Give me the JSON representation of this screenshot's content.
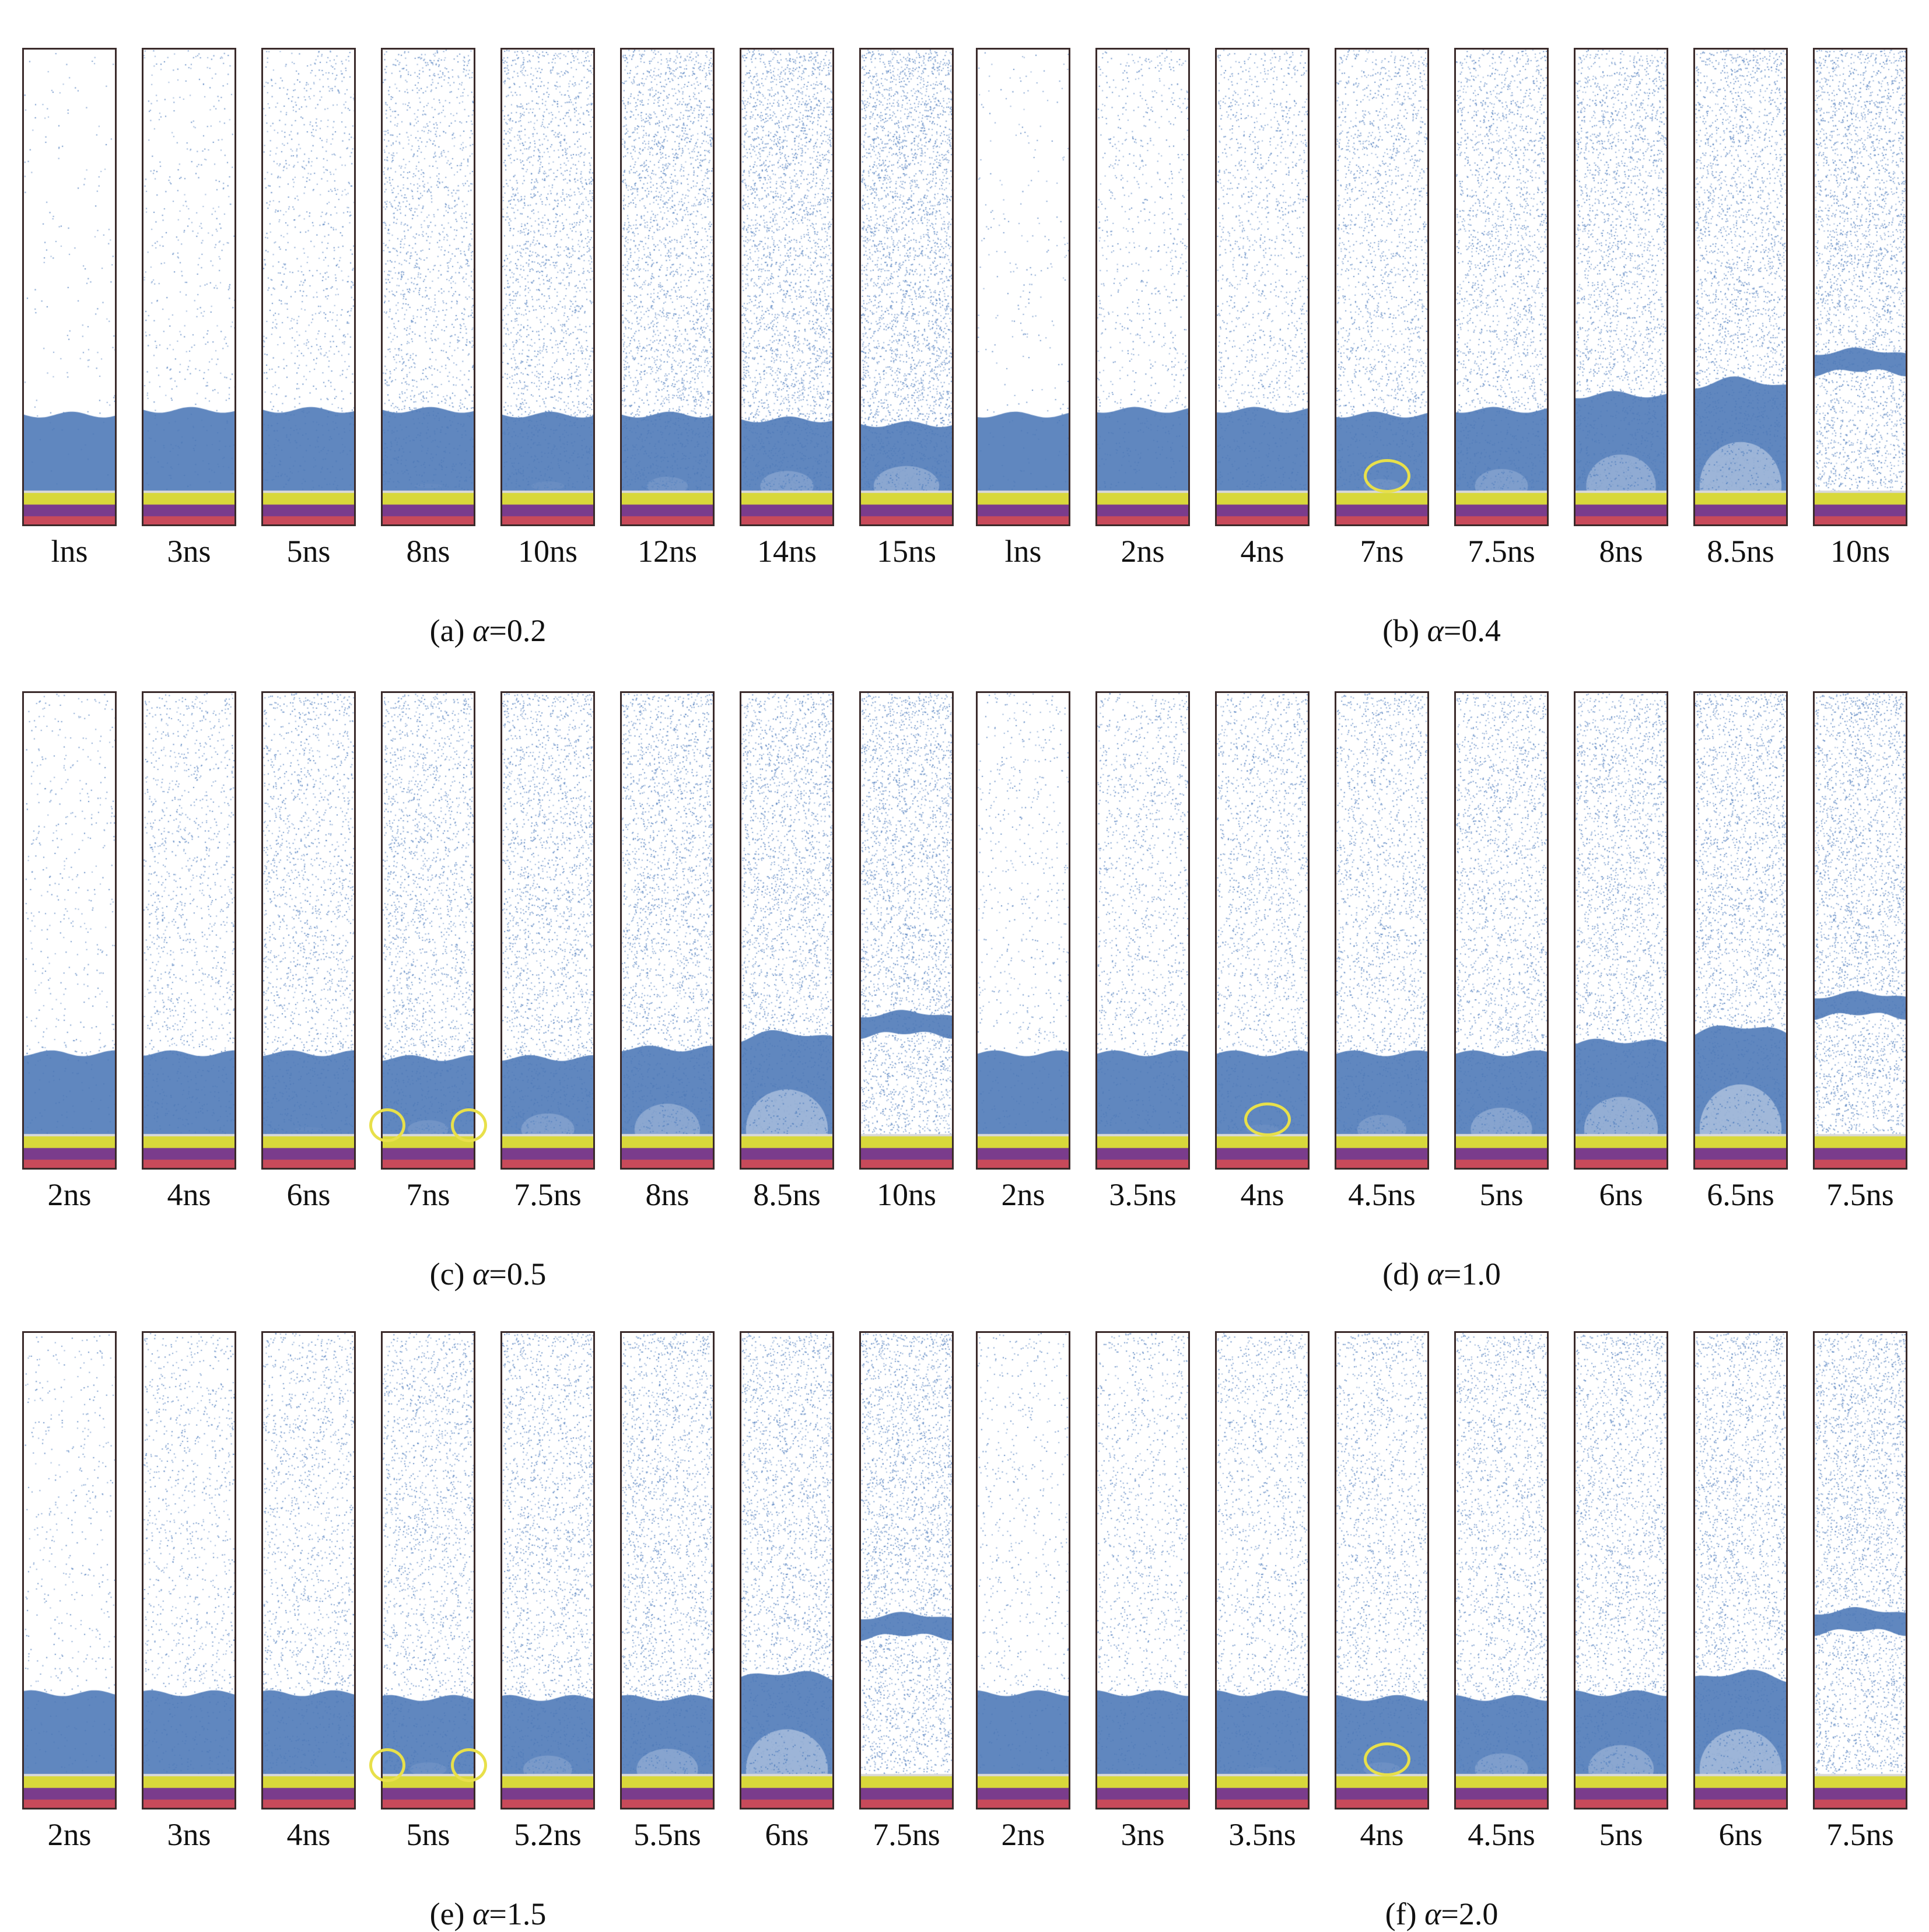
{
  "colors": {
    "particle": "#5b86c2",
    "bubble": "#4f7ab8",
    "yellow_layer": "#d8d83a",
    "purple_layer": "#7a3c8c",
    "red_layer": "#c84a5a",
    "marker": "#e8e04a"
  },
  "groups": [
    {
      "caption_prefix": "(a) ",
      "symbol": "α",
      "caption_value": "=0.2",
      "frames": [
        {
          "label": "lns",
          "density": 0.02,
          "bubble_front": 0.16,
          "detached": null,
          "hole": 0
        },
        {
          "label": "3ns",
          "density": 0.06,
          "bubble_front": 0.17,
          "detached": null,
          "hole": 0
        },
        {
          "label": "5ns",
          "density": 0.12,
          "bubble_front": 0.17,
          "detached": null,
          "hole": 0
        },
        {
          "label": "8ns",
          "density": 0.2,
          "bubble_front": 0.17,
          "detached": null,
          "hole": 0.05
        },
        {
          "label": "10ns",
          "density": 0.26,
          "bubble_front": 0.16,
          "detached": null,
          "hole": 0.1
        },
        {
          "label": "12ns",
          "density": 0.33,
          "bubble_front": 0.16,
          "detached": null,
          "hole": 0.2
        },
        {
          "label": "14ns",
          "density": 0.38,
          "bubble_front": 0.15,
          "detached": null,
          "hole": 0.35
        },
        {
          "label": "15ns",
          "density": 0.42,
          "bubble_front": 0.14,
          "detached": null,
          "hole": 0.5
        }
      ]
    },
    {
      "caption_prefix": "(b) ",
      "symbol": "α",
      "caption_value": "=0.4",
      "frames": [
        {
          "label": "lns",
          "density": 0.03,
          "bubble_front": 0.16,
          "detached": null,
          "hole": 0
        },
        {
          "label": "2ns",
          "density": 0.1,
          "bubble_front": 0.17,
          "detached": null,
          "hole": 0
        },
        {
          "label": "4ns",
          "density": 0.18,
          "bubble_front": 0.17,
          "detached": null,
          "hole": 0
        },
        {
          "label": "7ns",
          "density": 0.24,
          "bubble_front": 0.16,
          "detached": null,
          "hole": 0.15
        },
        {
          "label": "7.5ns",
          "density": 0.27,
          "bubble_front": 0.17,
          "detached": null,
          "hole": 0.35
        },
        {
          "label": "8ns",
          "density": 0.3,
          "bubble_front": 0.2,
          "detached": null,
          "hole": 0.55
        },
        {
          "label": "8.5ns",
          "density": 0.32,
          "bubble_front": 0.22,
          "detached": null,
          "hole": 0.7
        },
        {
          "label": "10ns",
          "density": 0.36,
          "bubble_front": 0.0,
          "detached": 0.32,
          "hole": 1
        }
      ],
      "markers": [
        3
      ]
    },
    {
      "caption_prefix": "(c) ",
      "symbol": "α",
      "caption_value": "=0.5",
      "frames": [
        {
          "label": "2ns",
          "density": 0.06,
          "bubble_front": 0.17,
          "detached": null,
          "hole": 0
        },
        {
          "label": "4ns",
          "density": 0.16,
          "bubble_front": 0.17,
          "detached": null,
          "hole": 0
        },
        {
          "label": "6ns",
          "density": 0.22,
          "bubble_front": 0.17,
          "detached": null,
          "hole": 0.05
        },
        {
          "label": "7ns",
          "density": 0.26,
          "bubble_front": 0.16,
          "detached": null,
          "hole": 0.2
        },
        {
          "label": "7.5ns",
          "density": 0.28,
          "bubble_front": 0.16,
          "detached": null,
          "hole": 0.35
        },
        {
          "label": "8ns",
          "density": 0.3,
          "bubble_front": 0.18,
          "detached": null,
          "hole": 0.5
        },
        {
          "label": "8.5ns",
          "density": 0.32,
          "bubble_front": 0.2,
          "detached": null,
          "hole": 0.7
        },
        {
          "label": "10ns",
          "density": 0.36,
          "bubble_front": 0.0,
          "detached": 0.28,
          "hole": 1
        }
      ],
      "markers": [
        3
      ]
    },
    {
      "caption_prefix": "(d) ",
      "symbol": "α",
      "caption_value": "=1.0",
      "frames": [
        {
          "label": "2ns",
          "density": 0.08,
          "bubble_front": 0.17,
          "detached": null,
          "hole": 0
        },
        {
          "label": "3.5ns",
          "density": 0.18,
          "bubble_front": 0.17,
          "detached": null,
          "hole": 0
        },
        {
          "label": "4ns",
          "density": 0.22,
          "bubble_front": 0.17,
          "detached": null,
          "hole": 0.1
        },
        {
          "label": "4.5ns",
          "density": 0.25,
          "bubble_front": 0.17,
          "detached": null,
          "hole": 0.3
        },
        {
          "label": "5ns",
          "density": 0.27,
          "bubble_front": 0.17,
          "detached": null,
          "hole": 0.45
        },
        {
          "label": "6ns",
          "density": 0.3,
          "bubble_front": 0.19,
          "detached": null,
          "hole": 0.6
        },
        {
          "label": "6.5ns",
          "density": 0.32,
          "bubble_front": 0.21,
          "detached": null,
          "hole": 0.75
        },
        {
          "label": "7.5ns",
          "density": 0.36,
          "bubble_front": 0.0,
          "detached": 0.32,
          "hole": 1
        }
      ],
      "markers": [
        2
      ]
    },
    {
      "caption_prefix": "(e) ",
      "symbol": "α",
      "caption_value": "=1.5",
      "frames": [
        {
          "label": "2ns",
          "density": 0.06,
          "bubble_front": 0.17,
          "detached": null,
          "hole": 0
        },
        {
          "label": "3ns",
          "density": 0.14,
          "bubble_front": 0.17,
          "detached": null,
          "hole": 0
        },
        {
          "label": "4ns",
          "density": 0.2,
          "bubble_front": 0.17,
          "detached": null,
          "hole": 0
        },
        {
          "label": "5ns",
          "density": 0.24,
          "bubble_front": 0.16,
          "detached": null,
          "hole": 0.15
        },
        {
          "label": "5.2ns",
          "density": 0.26,
          "bubble_front": 0.16,
          "detached": null,
          "hole": 0.3
        },
        {
          "label": "5.5ns",
          "density": 0.28,
          "bubble_front": 0.16,
          "detached": null,
          "hole": 0.45
        },
        {
          "label": "6ns",
          "density": 0.3,
          "bubble_front": 0.2,
          "detached": null,
          "hole": 0.7
        },
        {
          "label": "7.5ns",
          "density": 0.35,
          "bubble_front": 0.0,
          "detached": 0.36,
          "hole": 1
        }
      ],
      "markers": [
        3
      ]
    },
    {
      "caption_prefix": "(f) ",
      "symbol": "α",
      "caption_value": "=2.0",
      "frames": [
        {
          "label": "2ns",
          "density": 0.08,
          "bubble_front": 0.17,
          "detached": null,
          "hole": 0
        },
        {
          "label": "3ns",
          "density": 0.16,
          "bubble_front": 0.17,
          "detached": null,
          "hole": 0
        },
        {
          "label": "3.5ns",
          "density": 0.2,
          "bubble_front": 0.17,
          "detached": null,
          "hole": 0.05
        },
        {
          "label": "4ns",
          "density": 0.23,
          "bubble_front": 0.16,
          "detached": null,
          "hole": 0.15
        },
        {
          "label": "4.5ns",
          "density": 0.26,
          "bubble_front": 0.16,
          "detached": null,
          "hole": 0.35
        },
        {
          "label": "5ns",
          "density": 0.28,
          "bubble_front": 0.17,
          "detached": null,
          "hole": 0.5
        },
        {
          "label": "6ns",
          "density": 0.3,
          "bubble_front": 0.2,
          "detached": null,
          "hole": 0.7
        },
        {
          "label": "7.5ns",
          "density": 0.35,
          "bubble_front": 0.0,
          "detached": 0.37,
          "hole": 1
        }
      ],
      "markers": [
        3
      ]
    }
  ]
}
